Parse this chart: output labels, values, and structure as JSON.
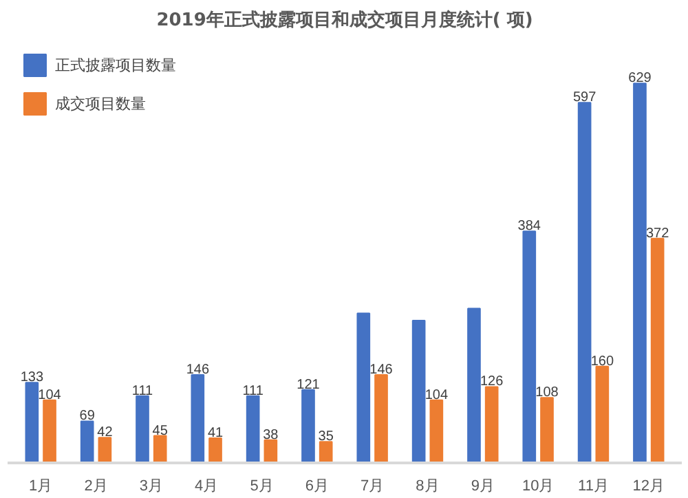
{
  "chart_data": {
    "type": "bar",
    "title": "2019年正式披露项目和成交项目月度统计( 项)",
    "categories": [
      "1月",
      "2月",
      "3月",
      "4月",
      "5月",
      "6月",
      "7月",
      "8月",
      "9月",
      "10月",
      "11月",
      "12月"
    ],
    "series": [
      {
        "name": "正式披露项目数量",
        "color": "#4472c4",
        "values": [
          133,
          69,
          111,
          146,
          111,
          121,
          248,
          236,
          256,
          384,
          597,
          629
        ],
        "value_labels": [
          "133",
          "69",
          "111",
          "146",
          "111",
          "121",
          null,
          null,
          null,
          "384",
          "597",
          "629"
        ]
      },
      {
        "name": "成交项目数量",
        "color": "#ed7d31",
        "values": [
          104,
          42,
          45,
          41,
          38,
          35,
          146,
          104,
          126,
          108,
          160,
          372
        ],
        "value_labels": [
          "104",
          "42",
          "45",
          "41",
          "38",
          "35",
          "146",
          "104",
          "126",
          "108",
          "160",
          "372"
        ]
      }
    ],
    "legend": "top left",
    "grid": false
  }
}
